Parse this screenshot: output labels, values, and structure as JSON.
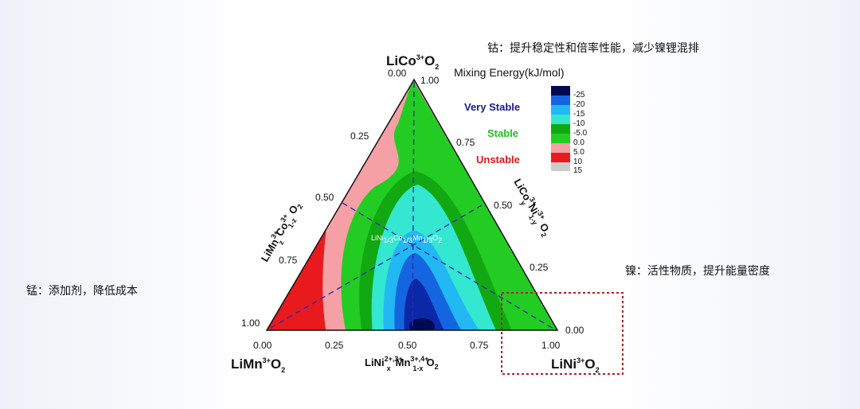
{
  "annotations": {
    "cobalt": "钴：提升稳定性和倍率性能，减少镍锂混排",
    "nickel": "镍：活性物质，提升能量密度",
    "manganese": "锰：添加剂，降低成本"
  },
  "vertices": {
    "top": [
      "LiCo",
      "3+",
      "O",
      "2"
    ],
    "left": [
      "LiMn",
      "3+",
      "O",
      "2"
    ],
    "right": [
      "LiNi",
      "3+",
      "O",
      "2"
    ]
  },
  "axes": {
    "bottom": {
      "title": [
        "LiNi",
        "2+,3+",
        "x",
        "Mn",
        "3+,4+",
        "1-x",
        "O",
        "2"
      ],
      "ticks": [
        "0.00",
        "0.25",
        "0.50",
        "0.75",
        "1.00"
      ]
    },
    "left": {
      "title": [
        "LiMn",
        "3+",
        "z",
        "Co",
        "3+",
        "1-z",
        "O",
        "2"
      ],
      "ticks": [
        "0.00",
        "0.25",
        "0.50",
        "0.75",
        "1.00"
      ]
    },
    "right": {
      "title": [
        "LiCo",
        "3+",
        "y",
        "Ni",
        "3+",
        "1-y",
        "O",
        "2"
      ],
      "ticks": [
        "1.00",
        "0.75",
        "0.50",
        "0.25",
        "0.00"
      ]
    }
  },
  "legend": {
    "title": "Mixing Energy(kJ/mol)",
    "levels": [
      "Very Stable",
      "Stable",
      "Unstable"
    ],
    "ticks": [
      "-25",
      "-20",
      "-15",
      "-10",
      "-5.0",
      "0.0",
      "5.0",
      "10",
      "15"
    ]
  },
  "inner_label": [
    "LiNi",
    "1/3",
    "Co",
    "1/3",
    "Mn",
    "1/3",
    "O",
    "2"
  ]
}
